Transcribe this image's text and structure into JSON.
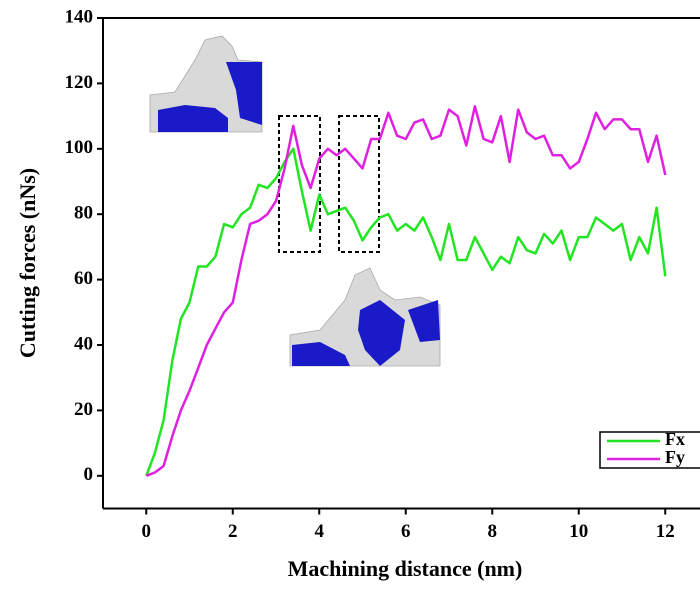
{
  "chart_data": {
    "type": "line",
    "x_label": "Machining distance (nm)",
    "y_label": "Cutting forces (nNs)",
    "x": [
      0,
      0.2,
      0.4,
      0.6,
      0.8,
      1.0,
      1.2,
      1.4,
      1.6,
      1.8,
      2.0,
      2.2,
      2.4,
      2.6,
      2.8,
      3.0,
      3.2,
      3.4,
      3.6,
      3.8,
      4.0,
      4.2,
      4.4,
      4.6,
      4.8,
      5.0,
      5.2,
      5.4,
      5.6,
      5.8,
      6.0,
      6.2,
      6.4,
      6.6,
      6.8,
      7.0,
      7.2,
      7.4,
      7.6,
      7.8,
      8.0,
      8.2,
      8.4,
      8.6,
      8.8,
      9.0,
      9.2,
      9.4,
      9.6,
      9.8,
      10.0,
      10.2,
      10.4,
      10.6,
      10.8,
      11.0,
      11.2,
      11.4,
      11.6,
      11.8,
      12.0
    ],
    "series": [
      {
        "name": "Fx",
        "color": "#22e522",
        "values": [
          0,
          7,
          17,
          35,
          48,
          53,
          64,
          64,
          67,
          77,
          76,
          80,
          82,
          89,
          88,
          91,
          96,
          100,
          87,
          75,
          86,
          80,
          81,
          82,
          78,
          72,
          76,
          79,
          80,
          75,
          77,
          75,
          79,
          73,
          66,
          77,
          66,
          66,
          73,
          68,
          63,
          67,
          65,
          73,
          69,
          68,
          74,
          71,
          75,
          66,
          73,
          73,
          79,
          77,
          75,
          77,
          66,
          73,
          68,
          82,
          61
        ]
      },
      {
        "name": "Fy",
        "color": "#e020e0",
        "values": [
          0,
          1,
          3,
          12,
          20,
          26,
          33,
          40,
          45,
          50,
          53,
          66,
          77,
          78,
          80,
          84,
          94,
          107,
          95,
          88,
          97,
          100,
          98,
          100,
          97,
          94,
          103,
          103,
          111,
          104,
          103,
          108,
          109,
          103,
          104,
          112,
          110,
          101,
          113,
          103,
          102,
          110,
          96,
          112,
          105,
          103,
          104,
          98,
          98,
          94,
          96,
          103,
          111,
          106,
          109,
          109,
          106,
          106,
          96,
          104,
          92
        ]
      }
    ],
    "xlim": [
      -1,
      13
    ],
    "ylim": [
      -10,
      140
    ],
    "xticks": [
      0,
      2,
      4,
      6,
      8,
      10,
      12
    ],
    "yticks": [
      0,
      20,
      40,
      60,
      80,
      100,
      120,
      140
    ],
    "legend": "lower right"
  }
}
